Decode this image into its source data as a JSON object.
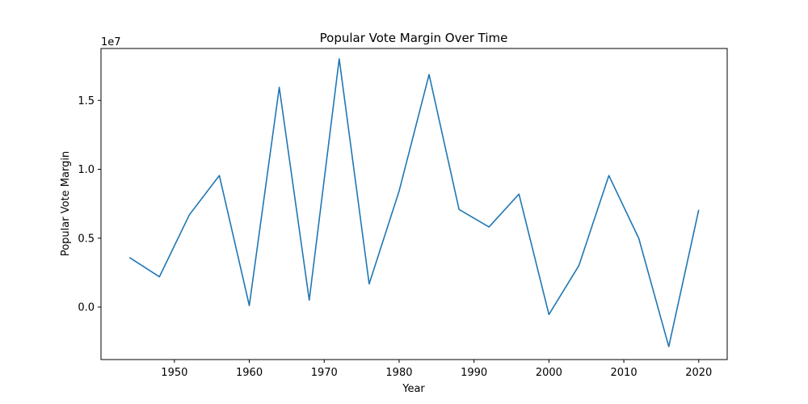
{
  "chart_data": {
    "type": "line",
    "title": "Popular Vote Margin Over Time",
    "xlabel": "Year",
    "ylabel": "Popular Vote Margin",
    "y_offset_label": "1e7",
    "y_scale_factor": 10000000,
    "xlim": [
      1940.2,
      2023.8
    ],
    "ylim": [
      -3810000,
      18770000
    ],
    "x_ticks": [
      1950,
      1960,
      1970,
      1980,
      1990,
      2000,
      2010,
      2020
    ],
    "x_tick_labels": [
      "1950",
      "1960",
      "1970",
      "1980",
      "1990",
      "2000",
      "2010",
      "2020"
    ],
    "y_ticks": [
      0,
      5000000,
      10000000,
      15000000
    ],
    "y_tick_labels": [
      "0.0",
      "0.5",
      "1.0",
      "1.5"
    ],
    "grid": false,
    "series": [
      {
        "color": "#1f77b4",
        "x": [
          1944,
          1948,
          1952,
          1956,
          1960,
          1964,
          1968,
          1972,
          1976,
          1980,
          1984,
          1988,
          1992,
          1996,
          2000,
          2004,
          2008,
          2012,
          2016,
          2020
        ],
        "y": [
          3600000,
          2200000,
          6700000,
          9550000,
          110000,
          15950000,
          510000,
          18020000,
          1680000,
          8420000,
          16880000,
          7090000,
          5810000,
          8200000,
          -540000,
          3010000,
          9550000,
          4980000,
          -2870000,
          7060000
        ]
      }
    ]
  }
}
